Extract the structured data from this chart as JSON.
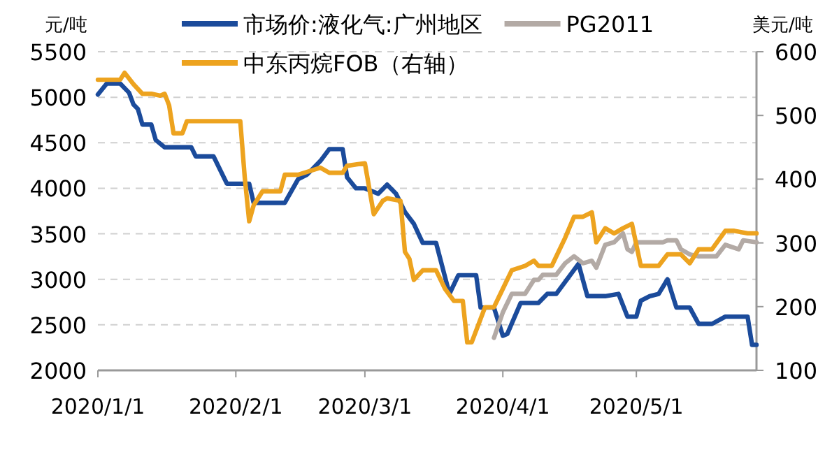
{
  "chart_data": {
    "type": "line",
    "ylabel": "元/吨",
    "y2label": "美元/吨",
    "xlim": [
      "2020-01-01",
      "2020-05-28"
    ],
    "xticks": [
      {
        "value": "2020-01-01",
        "label": "2020/1/1"
      },
      {
        "value": "2020-02-01",
        "label": "2020/2/1"
      },
      {
        "value": "2020-03-01",
        "label": "2020/3/1"
      },
      {
        "value": "2020-04-01",
        "label": "2020/4/1"
      },
      {
        "value": "2020-05-01",
        "label": "2020/5/1"
      }
    ],
    "ylim": [
      2000,
      5500
    ],
    "yticks": [
      2000,
      2500,
      3000,
      3500,
      4000,
      4500,
      5000,
      5500
    ],
    "y2lim": [
      100,
      600
    ],
    "y2ticks": [
      100,
      200,
      300,
      400,
      500,
      600
    ],
    "grid": "y",
    "legend": "top",
    "series": [
      {
        "name": "市场价:液化气:广州地区",
        "color": "#1b4b9b",
        "x": [
          "2020-01-01",
          "2020-01-03",
          "2020-01-06",
          "2020-01-08",
          "2020-01-09",
          "2020-01-10",
          "2020-01-11",
          "2020-01-13",
          "2020-01-14",
          "2020-01-16",
          "2020-01-22",
          "2020-01-23",
          "2020-01-27",
          "2020-01-30",
          "2020-02-04",
          "2020-02-05",
          "2020-02-12",
          "2020-02-15",
          "2020-02-17",
          "2020-02-20",
          "2020-02-22",
          "2020-02-25",
          "2020-02-26",
          "2020-02-28",
          "2020-03-01",
          "2020-03-04",
          "2020-03-06",
          "2020-03-08",
          "2020-03-10",
          "2020-03-12",
          "2020-03-14",
          "2020-03-17",
          "2020-03-20",
          "2020-03-22",
          "2020-03-26",
          "2020-03-27",
          "2020-03-30",
          "2020-04-01",
          "2020-04-02",
          "2020-04-05",
          "2020-04-09",
          "2020-04-11",
          "2020-04-13",
          "2020-04-18",
          "2020-04-20",
          "2020-04-24",
          "2020-04-27",
          "2020-04-29",
          "2020-05-01",
          "2020-05-02",
          "2020-05-04",
          "2020-05-06",
          "2020-05-08",
          "2020-05-10",
          "2020-05-13",
          "2020-05-15",
          "2020-05-18",
          "2020-05-21",
          "2020-05-26",
          "2020-05-27",
          "2020-05-28"
        ],
        "values": [
          5030,
          5150,
          5150,
          5050,
          4920,
          4870,
          4700,
          4700,
          4530,
          4450,
          4450,
          4350,
          4350,
          4050,
          4050,
          3840,
          3840,
          4100,
          4150,
          4300,
          4430,
          4430,
          4120,
          4000,
          4000,
          3940,
          4040,
          3940,
          3740,
          3610,
          3400,
          3400,
          2840,
          3045,
          3045,
          2690,
          2690,
          2380,
          2400,
          2740,
          2740,
          2840,
          2840,
          3170,
          2815,
          2815,
          2840,
          2590,
          2590,
          2765,
          2815,
          2840,
          3000,
          2690,
          2690,
          2510,
          2510,
          2590,
          2590,
          2280,
          2280
        ]
      },
      {
        "name": "PG2011",
        "color": "#b3aaa5",
        "axis": "y2",
        "x": [
          "2020-03-30",
          "2020-04-01",
          "2020-04-03",
          "2020-04-06",
          "2020-04-08",
          "2020-04-09",
          "2020-04-10",
          "2020-04-13",
          "2020-04-15",
          "2020-04-17",
          "2020-04-19",
          "2020-04-21",
          "2020-04-22",
          "2020-04-24",
          "2020-04-26",
          "2020-04-28",
          "2020-04-29",
          "2020-04-30",
          "2020-05-01",
          "2020-05-07",
          "2020-05-08",
          "2020-05-10",
          "2020-05-11",
          "2020-05-13",
          "2020-05-15",
          "2020-05-19",
          "2020-05-21",
          "2020-05-24",
          "2020-05-25",
          "2020-05-28"
        ],
        "values": [
          151,
          191,
          220,
          220,
          242,
          242,
          250,
          250,
          268,
          279,
          268,
          272,
          261,
          297,
          301,
          315,
          290,
          286,
          301,
          301,
          304,
          304,
          290,
          282,
          279,
          279,
          297,
          290,
          304,
          301
        ]
      },
      {
        "name": "中东丙烷FOB（右轴）",
        "color": "#eda31f",
        "axis": "y2",
        "x": [
          "2020-01-01",
          "2020-01-06",
          "2020-01-07",
          "2020-01-09",
          "2020-01-11",
          "2020-01-13",
          "2020-01-15",
          "2020-01-16",
          "2020-01-17",
          "2020-01-18",
          "2020-01-20",
          "2020-01-21",
          "2020-02-02",
          "2020-02-03",
          "2020-02-04",
          "2020-02-05",
          "2020-02-07",
          "2020-02-11",
          "2020-02-12",
          "2020-02-15",
          "2020-02-20",
          "2020-02-22",
          "2020-02-25",
          "2020-02-26",
          "2020-03-01",
          "2020-03-03",
          "2020-03-05",
          "2020-03-06",
          "2020-03-09",
          "2020-03-10",
          "2020-03-11",
          "2020-03-12",
          "2020-03-14",
          "2020-03-17",
          "2020-03-19",
          "2020-03-21",
          "2020-03-23",
          "2020-03-24",
          "2020-03-25",
          "2020-03-28",
          "2020-03-30",
          "2020-04-01",
          "2020-04-03",
          "2020-04-06",
          "2020-04-08",
          "2020-04-09",
          "2020-04-12",
          "2020-04-15",
          "2020-04-17",
          "2020-04-19",
          "2020-04-21",
          "2020-04-22",
          "2020-04-24",
          "2020-04-26",
          "2020-04-28",
          "2020-04-30",
          "2020-05-02",
          "2020-05-06",
          "2020-05-08",
          "2020-05-11",
          "2020-05-13",
          "2020-05-15",
          "2020-05-18",
          "2020-05-21",
          "2020-05-23",
          "2020-05-26",
          "2020-05-28"
        ],
        "values": [
          556,
          556,
          567,
          549,
          534,
          534,
          531,
          534,
          516,
          472,
          472,
          491,
          491,
          403,
          334,
          359,
          381,
          381,
          407,
          407,
          418,
          410,
          410,
          421,
          425,
          345,
          366,
          370,
          366,
          286,
          275,
          242,
          257,
          257,
          228,
          209,
          209,
          144,
          144,
          199,
          199,
          228,
          257,
          264,
          272,
          264,
          264,
          308,
          341,
          341,
          348,
          301,
          323,
          315,
          323,
          330,
          264,
          264,
          282,
          282,
          268,
          290,
          290,
          319,
          319,
          315,
          315
        ]
      }
    ]
  }
}
